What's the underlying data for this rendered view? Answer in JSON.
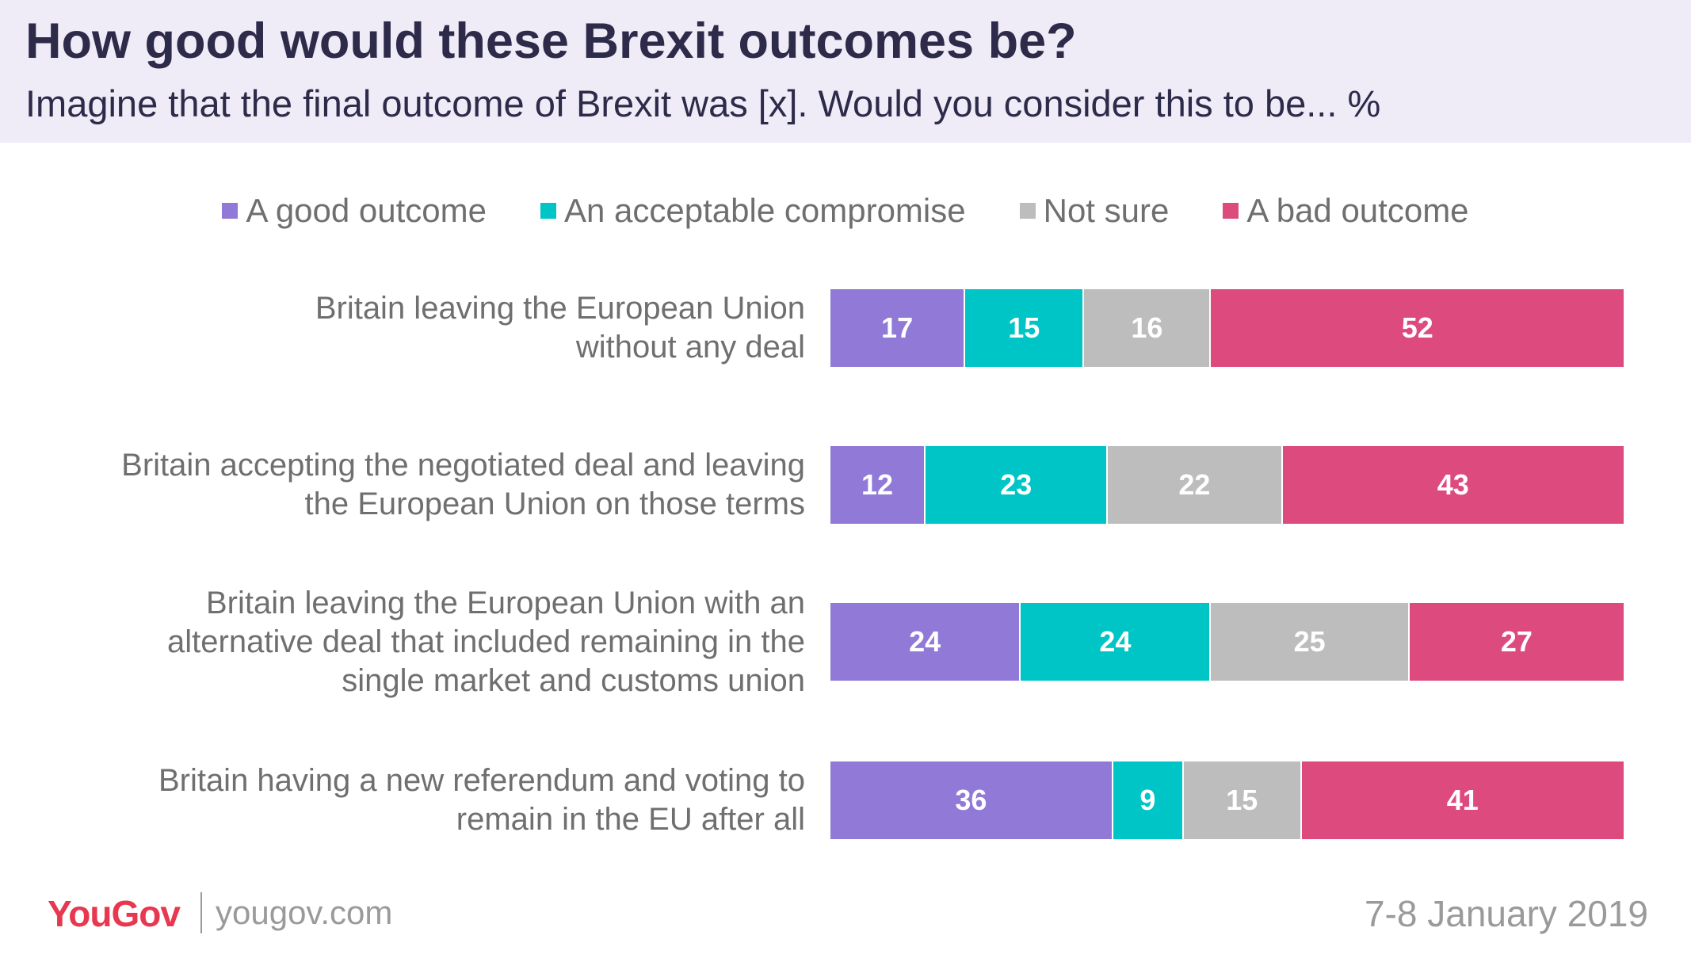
{
  "header": {
    "title": "How good would these Brexit outcomes be?",
    "subtitle": "Imagine that the final outcome of Brexit was [x]. Would you consider this to be... %"
  },
  "footer": {
    "brand": "YouGov",
    "site": "yougov.com",
    "date": "7-8 January 2019"
  },
  "colors": {
    "good": "#9179d7",
    "acceptable": "#00c5c6",
    "not_sure": "#bdbdbd",
    "bad": "#dd4a7d"
  },
  "chart_data": {
    "type": "bar",
    "orientation": "horizontal",
    "stacked": true,
    "title": "How good would these Brexit outcomes be?",
    "subtitle": "Imagine that the final outcome of Brexit was [x]. Would you consider this to be... %",
    "legend_position": "top",
    "categories": [
      [
        "Britain leaving the European Union",
        "without any deal"
      ],
      [
        "Britain accepting the negotiated deal and leaving",
        "the European Union on those terms"
      ],
      [
        "Britain leaving the European Union with an",
        "alternative deal that included remaining in the",
        "single market and customs union"
      ],
      [
        "Britain having a new referendum and voting to",
        "remain in the EU after all"
      ]
    ],
    "series": [
      {
        "name": "A good outcome",
        "color": "#9179d7",
        "values": [
          17,
          12,
          24,
          36
        ]
      },
      {
        "name": "An acceptable compromise",
        "color": "#00c5c6",
        "values": [
          15,
          23,
          24,
          9
        ]
      },
      {
        "name": "Not sure",
        "color": "#bdbdbd",
        "values": [
          16,
          22,
          25,
          15
        ]
      },
      {
        "name": "A bad outcome",
        "color": "#dd4a7d",
        "values": [
          52,
          43,
          27,
          41
        ]
      }
    ]
  }
}
